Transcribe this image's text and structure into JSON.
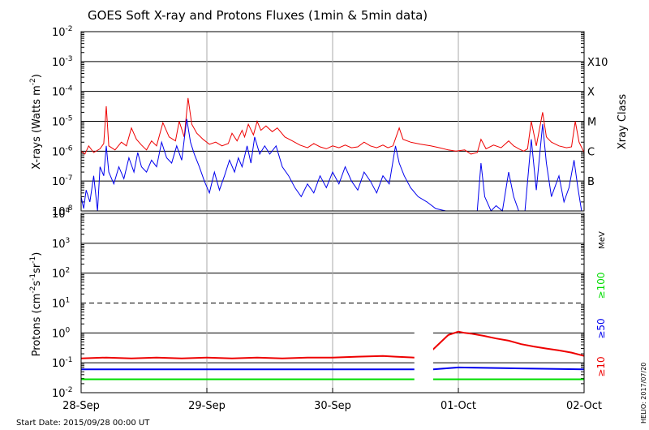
{
  "chart_data": {
    "type": "line",
    "title": "GOES Soft X-ray and Protons Fluxes   (1min & 5min data)",
    "start_date_label": "Start Date: 2015/09/28 00:00 UT",
    "credit": "HELIO: 2017/07/20",
    "x_range": [
      "2015-09-28T00:00",
      "2015-10-02T00:00"
    ],
    "x_ticks": [
      {
        "t": "2015-09-28T00:00",
        "label": "28-Sep"
      },
      {
        "t": "2015-09-29T00:00",
        "label": "29-Sep"
      },
      {
        "t": "2015-09-30T00:00",
        "label": "30-Sep"
      },
      {
        "t": "2015-10-01T00:00",
        "label": "01-Oct"
      },
      {
        "t": "2015-10-02T00:00",
        "label": "02-Oct"
      }
    ],
    "xray_panel": {
      "ylabel_prefix": "X-rays (Watts m",
      "ylabel_sup": "-2",
      "ylabel_suffix": ")",
      "yscale": "log",
      "ylim": [
        1e-08,
        0.01
      ],
      "y_ticks": [
        {
          "exp": "-2"
        },
        {
          "exp": "-3"
        },
        {
          "exp": "-4"
        },
        {
          "exp": "-5"
        },
        {
          "exp": "-6"
        },
        {
          "exp": "-7"
        },
        {
          "exp": "-8"
        }
      ],
      "class_axis_title": "Xray Class",
      "classes": [
        {
          "label": "X10",
          "flux": 0.001
        },
        {
          "label": "X",
          "flux": 0.0001
        },
        {
          "label": "M",
          "flux": 1e-05
        },
        {
          "label": "C",
          "flux": 1e-06
        },
        {
          "label": "B",
          "flux": 1e-07
        }
      ],
      "series": [
        {
          "color": "#ee0000",
          "points": [
            [
              0.0,
              1e-06
            ],
            [
              0.03,
              8e-07
            ],
            [
              0.06,
              1.5e-06
            ],
            [
              0.1,
              9e-07
            ],
            [
              0.15,
              1.2e-06
            ],
            [
              0.18,
              1.8e-06
            ],
            [
              0.2,
              3.2e-05
            ],
            [
              0.22,
              1.5e-06
            ],
            [
              0.27,
              1.1e-06
            ],
            [
              0.32,
              2e-06
            ],
            [
              0.36,
              1.5e-06
            ],
            [
              0.4,
              6e-06
            ],
            [
              0.44,
              2.5e-06
            ],
            [
              0.48,
              1.6e-06
            ],
            [
              0.52,
              1.1e-06
            ],
            [
              0.56,
              2.2e-06
            ],
            [
              0.6,
              1.5e-06
            ],
            [
              0.65,
              9e-06
            ],
            [
              0.7,
              3e-06
            ],
            [
              0.75,
              2.2e-06
            ],
            [
              0.78,
              1e-05
            ],
            [
              0.82,
              3e-06
            ],
            [
              0.85,
              6e-05
            ],
            [
              0.88,
              8e-06
            ],
            [
              0.92,
              4e-06
            ],
            [
              0.97,
              2.5e-06
            ],
            [
              1.02,
              1.7e-06
            ],
            [
              1.07,
              2e-06
            ],
            [
              1.12,
              1.5e-06
            ],
            [
              1.17,
              1.8e-06
            ],
            [
              1.2,
              4e-06
            ],
            [
              1.24,
              2.2e-06
            ],
            [
              1.28,
              5e-06
            ],
            [
              1.3,
              3e-06
            ],
            [
              1.33,
              8e-06
            ],
            [
              1.37,
              3.5e-06
            ],
            [
              1.4,
              1e-05
            ],
            [
              1.43,
              5e-06
            ],
            [
              1.47,
              7e-06
            ],
            [
              1.52,
              4.5e-06
            ],
            [
              1.56,
              6e-06
            ],
            [
              1.62,
              3e-06
            ],
            [
              1.68,
              2.2e-06
            ],
            [
              1.74,
              1.6e-06
            ],
            [
              1.8,
              1.3e-06
            ],
            [
              1.85,
              1.8e-06
            ],
            [
              1.9,
              1.4e-06
            ],
            [
              1.95,
              1.2e-06
            ],
            [
              2.0,
              1.5e-06
            ],
            [
              2.05,
              1.3e-06
            ],
            [
              2.1,
              1.6e-06
            ],
            [
              2.15,
              1.3e-06
            ],
            [
              2.2,
              1.4e-06
            ],
            [
              2.25,
              2e-06
            ],
            [
              2.3,
              1.5e-06
            ],
            [
              2.35,
              1.3e-06
            ],
            [
              2.4,
              1.6e-06
            ],
            [
              2.44,
              1.3e-06
            ],
            [
              2.48,
              1.5e-06
            ],
            [
              2.53,
              6e-06
            ],
            [
              2.56,
              2.5e-06
            ],
            [
              2.62,
              2e-06
            ],
            [
              2.7,
              1.7e-06
            ],
            [
              2.78,
              1.5e-06
            ],
            [
              2.85,
              1.3e-06
            ],
            [
              2.92,
              1.1e-06
            ],
            [
              2.98,
              1e-06
            ],
            [
              3.05,
              1.1e-06
            ],
            [
              3.1,
              8e-07
            ],
            [
              3.15,
              9e-07
            ],
            [
              3.18,
              2.5e-06
            ],
            [
              3.22,
              1.2e-06
            ],
            [
              3.28,
              1.6e-06
            ],
            [
              3.34,
              1.3e-06
            ],
            [
              3.4,
              2.2e-06
            ],
            [
              3.44,
              1.5e-06
            ],
            [
              3.48,
              1.2e-06
            ],
            [
              3.52,
              1e-06
            ],
            [
              3.55,
              1.2e-06
            ],
            [
              3.58,
              1e-05
            ],
            [
              3.62,
              1.5e-06
            ],
            [
              3.67,
              2e-05
            ],
            [
              3.7,
              3e-06
            ],
            [
              3.74,
              2e-06
            ],
            [
              3.8,
              1.5e-06
            ],
            [
              3.86,
              1.3e-06
            ],
            [
              3.9,
              1.4e-06
            ],
            [
              3.93,
              1e-05
            ],
            [
              3.96,
              2e-06
            ],
            [
              4.0,
              9e-07
            ]
          ]
        },
        {
          "color": "#0000ee",
          "points": [
            [
              0.0,
              3e-08
            ],
            [
              0.02,
              1.2e-08
            ],
            [
              0.04,
              5e-08
            ],
            [
              0.07,
              2e-08
            ],
            [
              0.1,
              1.5e-07
            ],
            [
              0.13,
              1e-08
            ],
            [
              0.15,
              3e-07
            ],
            [
              0.18,
              1.5e-07
            ],
            [
              0.2,
              1.5e-06
            ],
            [
              0.22,
              2e-07
            ],
            [
              0.26,
              8e-08
            ],
            [
              0.3,
              3e-07
            ],
            [
              0.34,
              1.2e-07
            ],
            [
              0.38,
              6e-07
            ],
            [
              0.42,
              2e-07
            ],
            [
              0.45,
              9e-07
            ],
            [
              0.48,
              3e-07
            ],
            [
              0.52,
              2e-07
            ],
            [
              0.56,
              5e-07
            ],
            [
              0.6,
              3e-07
            ],
            [
              0.64,
              2e-06
            ],
            [
              0.68,
              6e-07
            ],
            [
              0.72,
              4e-07
            ],
            [
              0.76,
              1.5e-06
            ],
            [
              0.8,
              5e-07
            ],
            [
              0.84,
              1.2e-05
            ],
            [
              0.87,
              2e-06
            ],
            [
              0.9,
              8e-07
            ],
            [
              0.94,
              3e-07
            ],
            [
              0.98,
              1e-07
            ],
            [
              1.02,
              4e-08
            ],
            [
              1.06,
              2e-07
            ],
            [
              1.1,
              5e-08
            ],
            [
              1.14,
              1.5e-07
            ],
            [
              1.18,
              5e-07
            ],
            [
              1.22,
              2e-07
            ],
            [
              1.25,
              6e-07
            ],
            [
              1.28,
              3e-07
            ],
            [
              1.32,
              1.5e-06
            ],
            [
              1.35,
              4e-07
            ],
            [
              1.38,
              3e-06
            ],
            [
              1.42,
              8e-07
            ],
            [
              1.46,
              1.5e-06
            ],
            [
              1.5,
              8e-07
            ],
            [
              1.55,
              1.5e-06
            ],
            [
              1.6,
              3e-07
            ],
            [
              1.65,
              1.5e-07
            ],
            [
              1.7,
              6e-08
            ],
            [
              1.75,
              3e-08
            ],
            [
              1.8,
              8e-08
            ],
            [
              1.85,
              4e-08
            ],
            [
              1.9,
              1.5e-07
            ],
            [
              1.95,
              6e-08
            ],
            [
              2.0,
              2e-07
            ],
            [
              2.05,
              8e-08
            ],
            [
              2.1,
              3e-07
            ],
            [
              2.15,
              1e-07
            ],
            [
              2.2,
              5e-08
            ],
            [
              2.25,
              2e-07
            ],
            [
              2.3,
              1e-07
            ],
            [
              2.35,
              4e-08
            ],
            [
              2.4,
              1.5e-07
            ],
            [
              2.45,
              8e-08
            ],
            [
              2.5,
              1.5e-06
            ],
            [
              2.53,
              4e-07
            ],
            [
              2.57,
              1.5e-07
            ],
            [
              2.62,
              6e-08
            ],
            [
              2.68,
              3e-08
            ],
            [
              2.75,
              2e-08
            ],
            [
              2.82,
              1.2e-08
            ],
            [
              2.9,
              1e-08
            ],
            [
              2.95,
              1e-08
            ],
            [
              3.0,
              1e-08
            ],
            [
              3.05,
              1e-08
            ],
            [
              3.1,
              1e-08
            ],
            [
              3.15,
              1e-08
            ],
            [
              3.18,
              4e-07
            ],
            [
              3.21,
              3e-08
            ],
            [
              3.26,
              1e-08
            ],
            [
              3.3,
              1.5e-08
            ],
            [
              3.35,
              1e-08
            ],
            [
              3.4,
              2e-07
            ],
            [
              3.44,
              3e-08
            ],
            [
              3.48,
              1e-08
            ],
            [
              3.53,
              1e-08
            ],
            [
              3.58,
              2.5e-06
            ],
            [
              3.62,
              5e-08
            ],
            [
              3.67,
              8e-06
            ],
            [
              3.7,
              4e-07
            ],
            [
              3.74,
              3e-08
            ],
            [
              3.8,
              1.5e-07
            ],
            [
              3.84,
              2e-08
            ],
            [
              3.88,
              6e-08
            ],
            [
              3.92,
              5e-07
            ],
            [
              3.95,
              6e-08
            ],
            [
              3.98,
              1e-08
            ]
          ]
        }
      ]
    },
    "proton_panel": {
      "ylabel_prefix": "Protons (cm",
      "ylabel_sup1": "-2",
      "ylabel_mid1": "s",
      "ylabel_sup2": "-1",
      "ylabel_mid2": "sr",
      "ylabel_sup3": "-1",
      "ylabel_suffix": ")",
      "yscale": "log",
      "ylim": [
        0.01,
        10000
      ],
      "y_ticks": [
        {
          "exp": "4"
        },
        {
          "exp": "3"
        },
        {
          "exp": "2"
        },
        {
          "exp": "1"
        },
        {
          "exp": "0"
        },
        {
          "exp": "-1"
        },
        {
          "exp": "-2"
        }
      ],
      "threshold": 10,
      "unit_label": "MeV",
      "legend": [
        {
          "label": "≥100",
          "color": "#00dd00"
        },
        {
          "label": "≥50",
          "color": "#0000ee"
        },
        {
          "label": "≥10",
          "color": "#ee0000"
        }
      ],
      "data_gap": [
        "2015-09-30T15:36",
        "2015-09-30T19:12"
      ],
      "series": [
        {
          "name": "≥10 MeV",
          "color": "#ee0000",
          "points": [
            [
              0.0,
              0.14
            ],
            [
              0.2,
              0.15
            ],
            [
              0.4,
              0.14
            ],
            [
              0.6,
              0.15
            ],
            [
              0.8,
              0.14
            ],
            [
              1.0,
              0.15
            ],
            [
              1.2,
              0.14
            ],
            [
              1.4,
              0.15
            ],
            [
              1.6,
              0.14
            ],
            [
              1.8,
              0.15
            ],
            [
              2.0,
              0.15
            ],
            [
              2.2,
              0.16
            ],
            [
              2.4,
              0.17
            ],
            [
              2.5,
              0.16
            ],
            [
              2.65,
              0.15
            ],
            [
              2.75,
              0.18
            ],
            [
              2.85,
              0.45
            ],
            [
              2.92,
              0.85
            ],
            [
              3.0,
              1.1
            ],
            [
              3.05,
              1.0
            ],
            [
              3.1,
              0.95
            ],
            [
              3.2,
              0.8
            ],
            [
              3.3,
              0.65
            ],
            [
              3.4,
              0.55
            ],
            [
              3.5,
              0.42
            ],
            [
              3.6,
              0.35
            ],
            [
              3.7,
              0.3
            ],
            [
              3.8,
              0.26
            ],
            [
              3.9,
              0.22
            ],
            [
              4.0,
              0.17
            ]
          ]
        },
        {
          "name": "≥50 MeV",
          "color": "#0000ee",
          "points": [
            [
              0.0,
              0.06
            ],
            [
              0.5,
              0.06
            ],
            [
              1.0,
              0.06
            ],
            [
              1.5,
              0.06
            ],
            [
              2.0,
              0.06
            ],
            [
              2.5,
              0.06
            ],
            [
              2.65,
              0.06
            ],
            [
              2.8,
              0.06
            ],
            [
              3.0,
              0.07
            ],
            [
              3.5,
              0.065
            ],
            [
              4.0,
              0.06
            ]
          ]
        },
        {
          "name": "≥100 MeV",
          "color": "#00dd00",
          "points": [
            [
              0.0,
              0.028
            ],
            [
              0.5,
              0.028
            ],
            [
              1.0,
              0.028
            ],
            [
              1.5,
              0.028
            ],
            [
              2.0,
              0.028
            ],
            [
              2.5,
              0.028
            ],
            [
              2.65,
              0.028
            ],
            [
              2.8,
              0.028
            ],
            [
              3.0,
              0.028
            ],
            [
              3.5,
              0.028
            ],
            [
              4.0,
              0.028
            ]
          ]
        }
      ]
    },
    "x_points_unit": "days from 2015-09-28 00:00 UT"
  }
}
